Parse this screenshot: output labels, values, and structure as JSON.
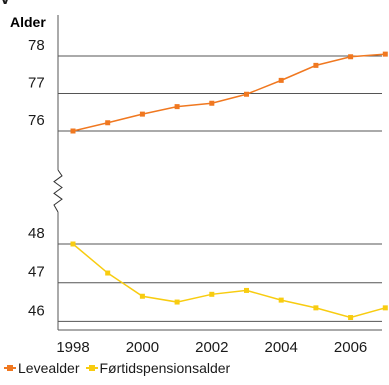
{
  "chart_data": {
    "type": "line",
    "title": "",
    "ylabel": "Alder",
    "x": [
      1998,
      1999,
      2000,
      2001,
      2002,
      2003,
      2004,
      2005,
      2006,
      2007
    ],
    "x_tick_labels": [
      "1998",
      "2000",
      "2002",
      "2004",
      "2006"
    ],
    "upper_panel": {
      "ylim": [
        75.5,
        78.5
      ],
      "y_ticks": [
        76,
        77,
        78
      ],
      "series": [
        {
          "name": "Levealder",
          "color": "#F07820",
          "values": [
            76.0,
            76.22,
            76.45,
            76.65,
            76.74,
            76.98,
            77.35,
            77.75,
            77.98,
            78.05
          ]
        }
      ]
    },
    "lower_panel": {
      "ylim": [
        45.8,
        48.4
      ],
      "y_ticks": [
        46,
        47,
        48
      ],
      "series": [
        {
          "name": "Førtidspensionsalder",
          "color": "#F8CC10",
          "values": [
            48.0,
            47.25,
            46.65,
            46.5,
            46.7,
            46.8,
            46.55,
            46.35,
            46.1,
            46.35
          ]
        }
      ]
    },
    "axis_break": true,
    "grid": true,
    "legend_position": "bottom-left"
  }
}
